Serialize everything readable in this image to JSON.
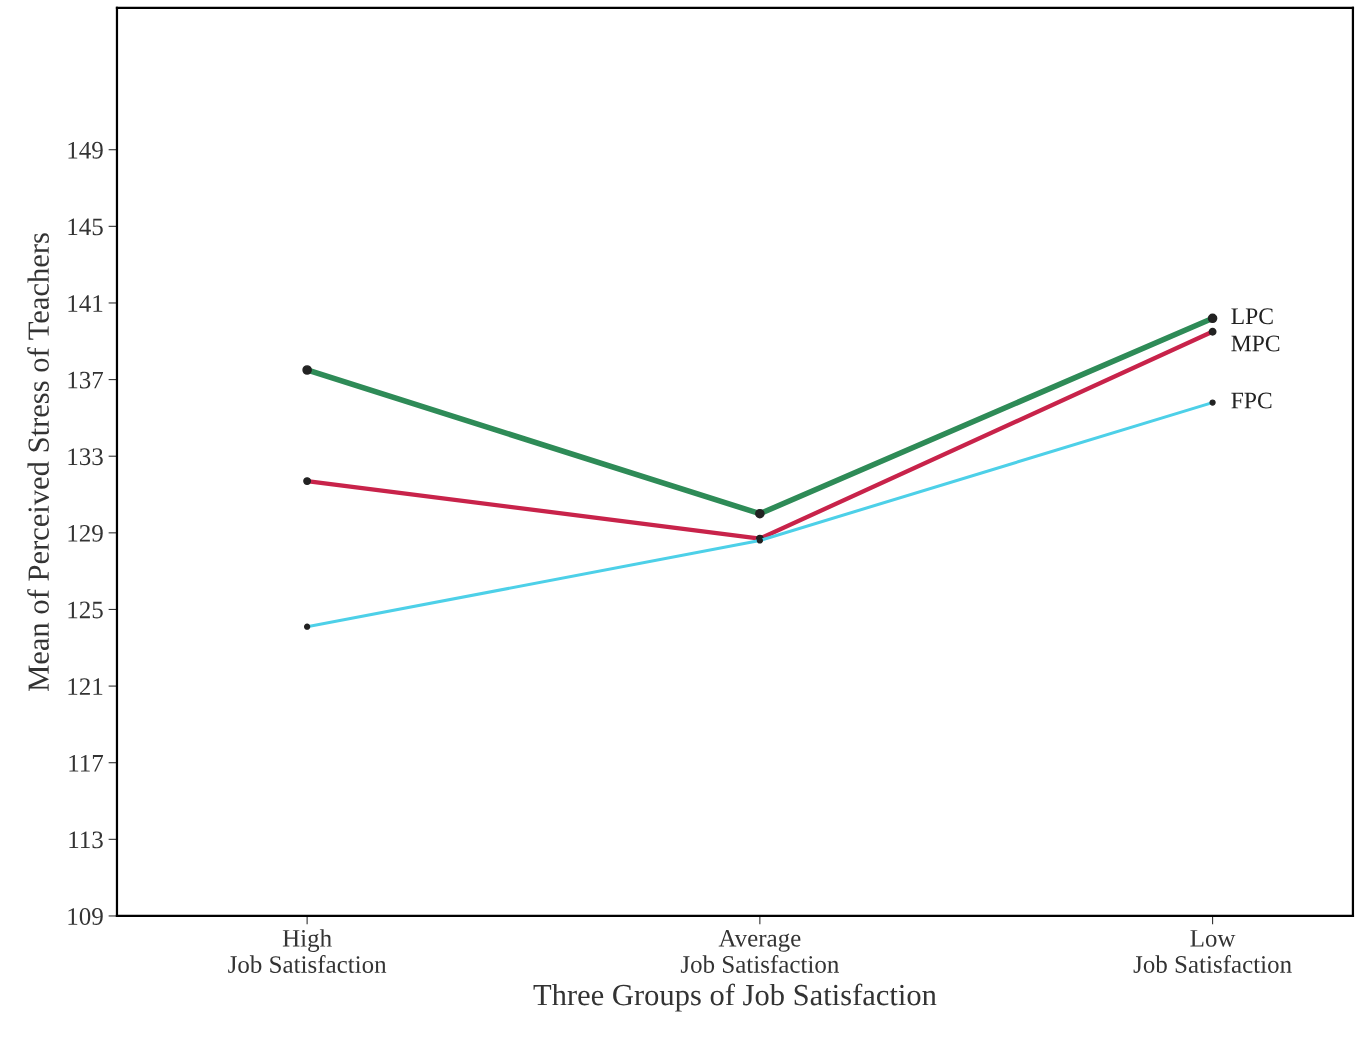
{
  "chart_data": {
    "type": "line",
    "xlabel": "Three Groups of Job Satisfaction",
    "ylabel": "Mean of Perceived Stress of Teachers",
    "categories": [
      "High\nJob Satisfaction",
      "Average\nJob Satisfaction",
      "Low\nJob Satisfaction"
    ],
    "series": [
      {
        "name": "LPC",
        "color": "#2e8b57",
        "values": [
          137.5,
          130.0,
          140.2
        ]
      },
      {
        "name": "MPC",
        "color": "#c8234a",
        "values": [
          131.7,
          128.7,
          139.5
        ]
      },
      {
        "name": "FPC",
        "color": "#4dd0e8",
        "values": [
          124.1,
          128.6,
          135.8
        ]
      }
    ],
    "ylim": [
      109,
      156.4
    ],
    "yticks": [
      109,
      113,
      117,
      121,
      125,
      129,
      133,
      137,
      141,
      145,
      149
    ],
    "marker": "circle",
    "line_style": "solid",
    "grid": false,
    "legend": false
  }
}
